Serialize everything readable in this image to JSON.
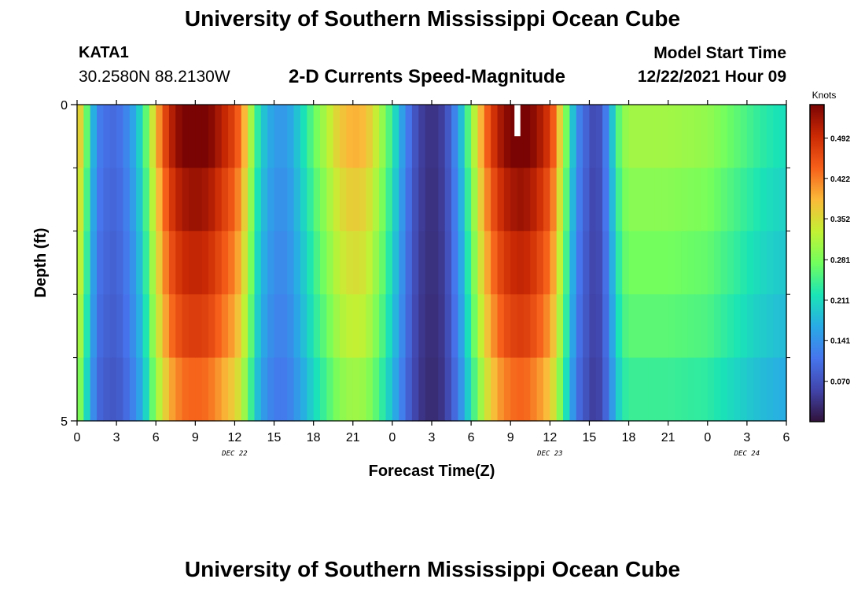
{
  "header": {
    "title": "University of Southern Mississippi Ocean Cube",
    "station": "KATA1",
    "coords": "30.2580N  88.2130W",
    "subtitle": "2-D Currents Speed-Magnitude",
    "model_start_label": "Model Start Time",
    "model_start_value": "12/22/2021 Hour 09"
  },
  "footer": {
    "title": "University of Southern Mississippi Ocean Cube"
  },
  "chart_data": {
    "type": "heatmap",
    "title": "2-D Currents Speed-Magnitude",
    "xlabel": "Forecast Time(Z)",
    "ylabel": "Depth (ft)",
    "xlim": [
      0,
      54
    ],
    "ylim": [
      5,
      0
    ],
    "x_ticks": [
      0,
      3,
      6,
      9,
      12,
      15,
      18,
      21,
      24,
      27,
      30,
      33,
      36,
      39,
      42,
      45,
      48,
      51,
      54
    ],
    "x_tick_labels": [
      "0",
      "3",
      "6",
      "9",
      "12",
      "15",
      "18",
      "21",
      "0",
      "3",
      "6",
      "9",
      "12",
      "15",
      "18",
      "21",
      "0",
      "3",
      "6"
    ],
    "y_ticks": [
      0,
      5
    ],
    "y_tick_labels": [
      "0",
      "5"
    ],
    "day_labels": [
      {
        "x": 12,
        "label": "DEC 22"
      },
      {
        "x": 36,
        "label": "DEC 23"
      },
      {
        "x": 51,
        "label": "DEC 24"
      }
    ],
    "colorbar": {
      "unit": "Knots",
      "min": 0.0,
      "max": 0.55,
      "ticks": [
        0.07,
        0.141,
        0.211,
        0.281,
        0.352,
        0.422,
        0.492
      ],
      "tick_labels": [
        "0.070",
        "0.141",
        "0.211",
        "0.281",
        "0.352",
        "0.422",
        "0.492"
      ]
    },
    "grid": false,
    "time_step_hours": 0.5,
    "depth_levels": 5,
    "speed_profile": [
      [
        0,
        0.38
      ],
      [
        0.5,
        0.3
      ],
      [
        1,
        0.2
      ],
      [
        1.5,
        0.12
      ],
      [
        2,
        0.1
      ],
      [
        3,
        0.09
      ],
      [
        4,
        0.13
      ],
      [
        5,
        0.21
      ],
      [
        6,
        0.36
      ],
      [
        7,
        0.47
      ],
      [
        8,
        0.52
      ],
      [
        9,
        0.53
      ],
      [
        10,
        0.52
      ],
      [
        11,
        0.48
      ],
      [
        12,
        0.44
      ],
      [
        12.5,
        0.4
      ],
      [
        13,
        0.33
      ],
      [
        13.5,
        0.25
      ],
      [
        14,
        0.19
      ],
      [
        15,
        0.14
      ],
      [
        16,
        0.14
      ],
      [
        17,
        0.19
      ],
      [
        18,
        0.25
      ],
      [
        19,
        0.3
      ],
      [
        20,
        0.35
      ],
      [
        21,
        0.37
      ],
      [
        22,
        0.36
      ],
      [
        23,
        0.3
      ],
      [
        24,
        0.22
      ],
      [
        25,
        0.12
      ],
      [
        26,
        0.05
      ],
      [
        27,
        0.03
      ],
      [
        28,
        0.05
      ],
      [
        29,
        0.14
      ],
      [
        30,
        0.27
      ],
      [
        31,
        0.4
      ],
      [
        32,
        0.48
      ],
      [
        33,
        0.52
      ],
      [
        34,
        0.53
      ],
      [
        35,
        0.5
      ],
      [
        36,
        0.45
      ],
      [
        36.5,
        0.39
      ],
      [
        37,
        0.3
      ],
      [
        37.5,
        0.22
      ],
      [
        38,
        0.13
      ],
      [
        39,
        0.07
      ],
      [
        39.5,
        0.05
      ],
      [
        40,
        0.08
      ],
      [
        40.5,
        0.14
      ],
      [
        41,
        0.22
      ],
      [
        41.5,
        0.27
      ],
      [
        42,
        0.29
      ],
      [
        45,
        0.29
      ],
      [
        48,
        0.28
      ],
      [
        50,
        0.25
      ],
      [
        52,
        0.22
      ],
      [
        54,
        0.2
      ]
    ],
    "depth_factors": [
      1.06,
      1.0,
      0.95,
      0.9,
      0.83,
      0.75
    ],
    "missing": {
      "x_start": 33.3,
      "x_end": 33.75,
      "depth_start": 0,
      "depth_end": 0.5
    }
  }
}
